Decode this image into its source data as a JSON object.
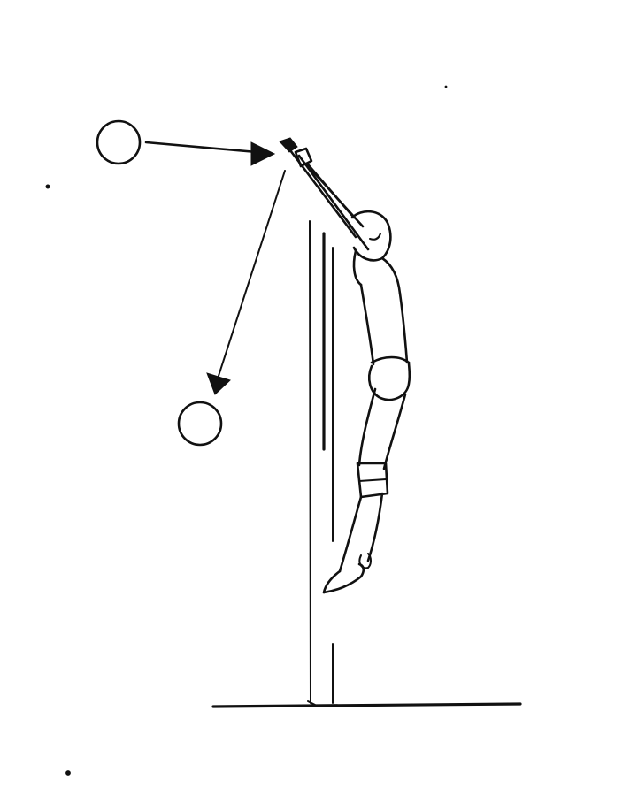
{
  "colors": {
    "ink": "#111111",
    "background": "#ffffff"
  }
}
